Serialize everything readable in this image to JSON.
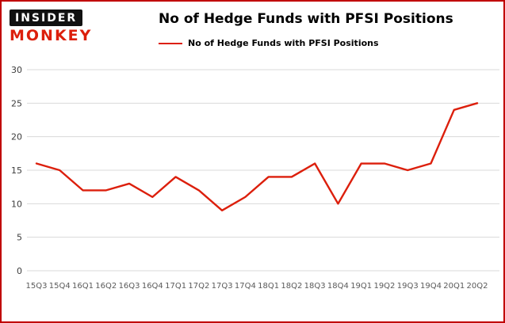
{
  "branding": {
    "logo_line1": "INSIDER",
    "logo_line2": "MONKEY"
  },
  "colors": {
    "accent": "#dc1f0c",
    "frame_border": "#c00000",
    "grid": "#d9d9d9",
    "ytick_text": "#3c3c3c",
    "xtick_text": "#5a5a5a"
  },
  "chart_data": {
    "type": "line",
    "title": "No of Hedge Funds with PFSI Positions",
    "legend": "No of Hedge Funds with PFSI Positions",
    "categories": [
      "15Q3",
      "15Q4",
      "16Q1",
      "16Q2",
      "16Q3",
      "16Q4",
      "17Q1",
      "17Q2",
      "17Q3",
      "17Q4",
      "18Q1",
      "18Q2",
      "18Q3",
      "18Q4",
      "19Q1",
      "19Q2",
      "19Q3",
      "19Q4",
      "20Q1",
      "20Q2"
    ],
    "values": [
      16,
      15,
      12,
      12,
      13,
      11,
      14,
      12,
      9,
      11,
      14,
      14,
      16,
      10,
      16,
      16,
      15,
      16,
      24,
      25
    ],
    "ylim": [
      0,
      30
    ],
    "yticks": [
      0,
      5,
      10,
      15,
      20,
      25,
      30
    ],
    "grid": "horizontal",
    "legend_position": "top-left",
    "line_color": "#dc1f0c",
    "xlabel": "",
    "ylabel": ""
  }
}
